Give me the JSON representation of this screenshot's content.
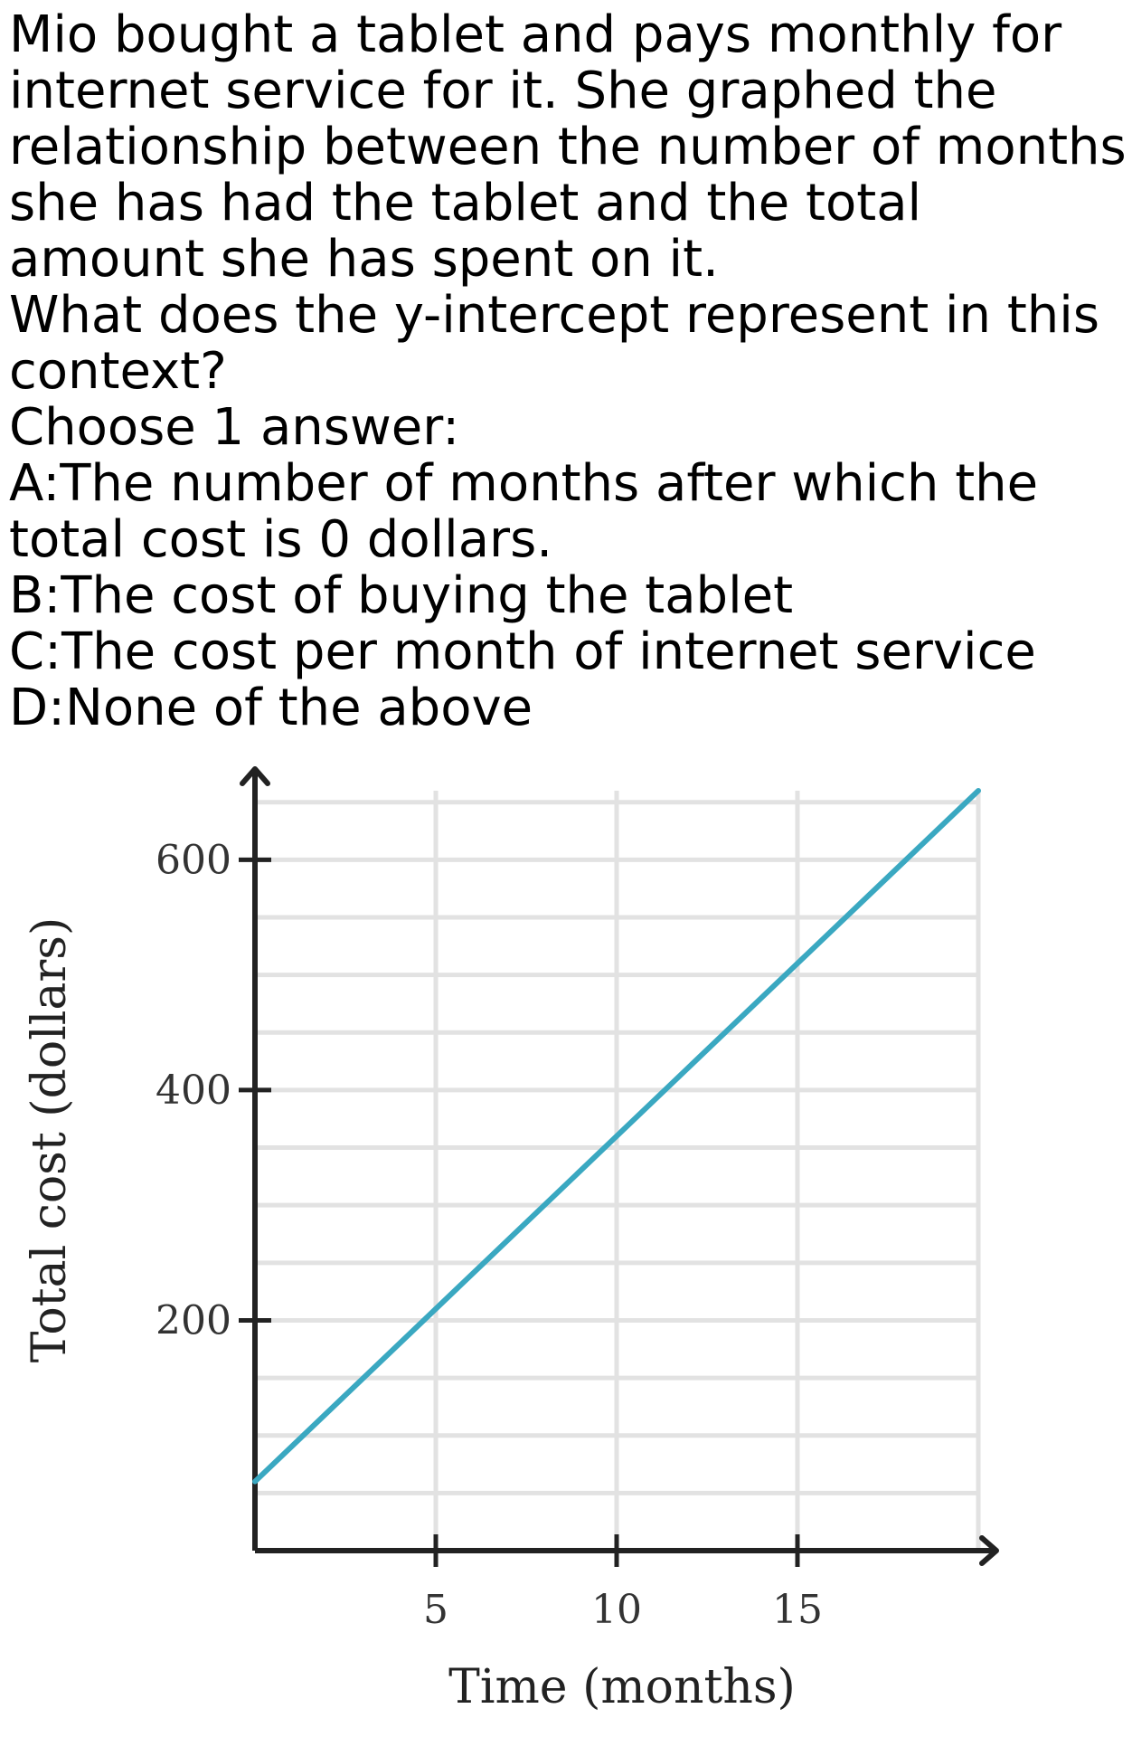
{
  "question": {
    "stem": "Mio bought a tablet and pays monthly for internet service for it. She graphed the relationship between the number of months she has had the tablet and the total amount she has spent on it.",
    "prompt": "What does the y-intercept represent in this context?",
    "instruction": "Choose 1 answer:",
    "choices": [
      "A:The number of months after which the total cost is 0 dollars.",
      "B:The cost of buying the tablet",
      "C:The cost per month of internet service",
      "D:None of the above"
    ]
  },
  "chart_data": {
    "type": "line",
    "xlabel": "Time (months)",
    "ylabel": "Total cost (dollars)",
    "xlim": [
      0,
      20
    ],
    "ylim": [
      0,
      660
    ],
    "xticks": [
      5,
      10,
      15
    ],
    "xtick_labels": [
      "5",
      "10",
      "15"
    ],
    "yticks": [
      200,
      400,
      600
    ],
    "ytick_labels": [
      "200",
      "400",
      "600"
    ],
    "grid": true,
    "grid_step_x": 5,
    "grid_step_y": 50,
    "series": [
      {
        "x": [
          0,
          20
        ],
        "y": [
          60,
          660
        ],
        "color": "#3aa8c1"
      }
    ],
    "axis_color": "#222222",
    "grid_color": "#e2e2e2"
  }
}
